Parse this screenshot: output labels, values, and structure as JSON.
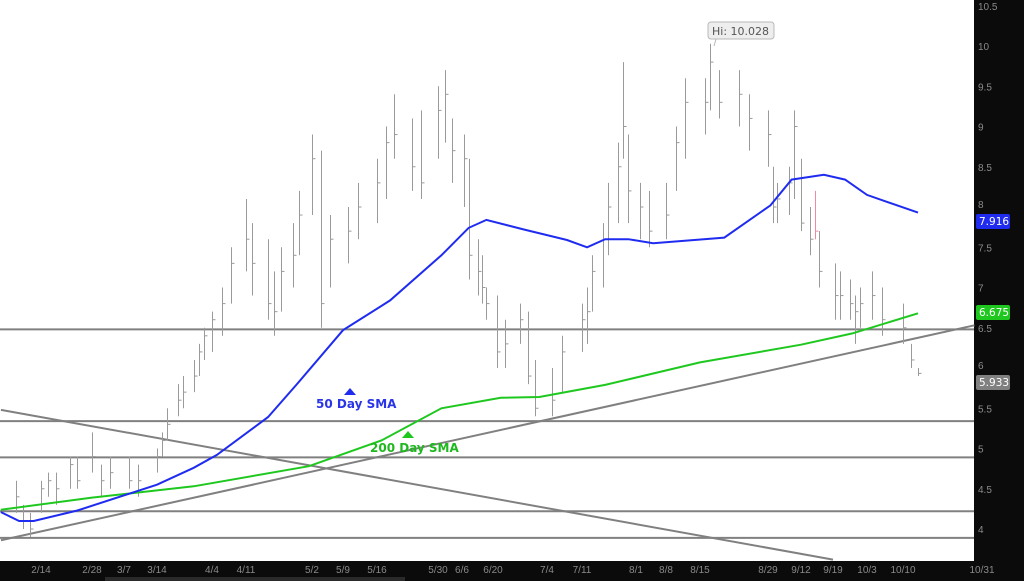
{
  "chart_data": {
    "type": "ohlc",
    "title": "",
    "xlabel": "",
    "ylabel": "",
    "ylim": [
      3.75,
      10.55
    ],
    "grid": false,
    "legend": "none",
    "y_ticks": [
      "10.5",
      "10",
      "9.5",
      "9",
      "8.5",
      "8",
      "7.5",
      "7",
      "6.5",
      "6",
      "5.5",
      "5",
      "4.5",
      "4"
    ],
    "x_ticks": [
      "2/14",
      "2/28",
      "3/7",
      "3/14",
      "4/4",
      "4/11",
      "5/2",
      "5/9",
      "5/16",
      "5/30",
      "6/6",
      "6/20",
      "7/4",
      "7/11",
      "8/1",
      "8/8",
      "8/15",
      "8/29",
      "9/12",
      "9/19",
      "10/3",
      "10/10",
      "10/31"
    ],
    "bars_fields": [
      "date",
      "high",
      "low",
      "close"
    ],
    "bars": [
      [
        "2/7",
        4.6,
        4.2,
        4.4
      ],
      [
        "2/9",
        4.3,
        4.0,
        4.1
      ],
      [
        "2/11",
        4.2,
        3.9,
        4.0
      ],
      [
        "2/14",
        4.6,
        4.2,
        4.5
      ],
      [
        "2/16",
        4.7,
        4.4,
        4.6
      ],
      [
        "2/18",
        4.7,
        4.3,
        4.5
      ],
      [
        "2/22",
        4.9,
        4.5,
        4.8
      ],
      [
        "2/24",
        4.9,
        4.5,
        4.6
      ],
      [
        "2/28",
        5.2,
        4.7,
        4.9
      ],
      [
        "3/2",
        4.8,
        4.4,
        4.6
      ],
      [
        "3/4",
        4.9,
        4.5,
        4.7
      ],
      [
        "3/8",
        4.9,
        4.5,
        4.6
      ],
      [
        "3/10",
        4.8,
        4.4,
        4.6
      ],
      [
        "3/14",
        5.0,
        4.7,
        4.9
      ],
      [
        "3/16",
        5.2,
        4.9,
        5.1
      ],
      [
        "3/18",
        5.5,
        5.1,
        5.3
      ],
      [
        "3/22",
        5.8,
        5.4,
        5.6
      ],
      [
        "3/24",
        5.9,
        5.5,
        5.7
      ],
      [
        "3/28",
        6.1,
        5.7,
        5.9
      ],
      [
        "3/30",
        6.3,
        5.9,
        6.2
      ],
      [
        "4/1",
        6.5,
        6.1,
        6.4
      ],
      [
        "4/4",
        6.7,
        6.2,
        6.6
      ],
      [
        "4/6",
        7.0,
        6.4,
        6.8
      ],
      [
        "4/8",
        7.5,
        6.8,
        7.3
      ],
      [
        "4/11",
        8.1,
        7.2,
        7.6
      ],
      [
        "4/13",
        7.8,
        6.9,
        7.3
      ],
      [
        "4/18",
        7.6,
        6.6,
        6.8
      ],
      [
        "4/20",
        7.2,
        6.4,
        6.7
      ],
      [
        "4/22",
        7.5,
        6.7,
        7.2
      ],
      [
        "4/26",
        7.8,
        7.0,
        7.4
      ],
      [
        "4/28",
        8.2,
        7.4,
        7.9
      ],
      [
        "5/2",
        8.9,
        7.9,
        8.6
      ],
      [
        "5/4",
        8.7,
        6.5,
        6.8
      ],
      [
        "5/6",
        7.9,
        7.0,
        7.6
      ],
      [
        "5/10",
        8.0,
        7.3,
        7.7
      ],
      [
        "5/12",
        8.3,
        7.6,
        8.0
      ],
      [
        "5/16",
        8.6,
        7.8,
        8.3
      ],
      [
        "5/18",
        9.0,
        8.1,
        8.8
      ],
      [
        "5/20",
        9.4,
        8.6,
        8.9
      ],
      [
        "5/24",
        9.1,
        8.2,
        8.5
      ],
      [
        "5/26",
        9.2,
        8.1,
        8.3
      ],
      [
        "5/30",
        9.5,
        8.6,
        9.2
      ],
      [
        "6/1",
        9.7,
        8.8,
        9.4
      ],
      [
        "6/3",
        9.1,
        8.3,
        8.7
      ],
      [
        "6/7",
        8.9,
        8.0,
        8.6
      ],
      [
        "6/9",
        8.6,
        7.1,
        7.4
      ],
      [
        "6/13",
        7.6,
        6.9,
        7.2
      ],
      [
        "6/15",
        7.4,
        6.8,
        7.0
      ],
      [
        "6/17",
        7.0,
        6.6,
        6.8
      ],
      [
        "6/21",
        6.9,
        6.0,
        6.2
      ],
      [
        "6/23",
        6.6,
        6.0,
        6.3
      ],
      [
        "6/27",
        6.8,
        6.3,
        6.6
      ],
      [
        "6/29",
        6.7,
        5.8,
        5.9
      ],
      [
        "7/1",
        6.1,
        5.4,
        5.5
      ],
      [
        "7/5",
        6.0,
        5.4,
        5.6
      ],
      [
        "7/7",
        6.4,
        5.7,
        6.2
      ],
      [
        "7/11",
        6.8,
        6.2,
        6.6
      ],
      [
        "7/13",
        7.0,
        6.3,
        6.7
      ],
      [
        "7/15",
        7.4,
        6.7,
        7.2
      ],
      [
        "7/19",
        7.8,
        7.0,
        7.6
      ],
      [
        "7/21",
        8.3,
        7.4,
        8.0
      ],
      [
        "7/25",
        8.8,
        7.8,
        8.5
      ],
      [
        "7/27",
        9.8,
        8.6,
        9.0
      ],
      [
        "7/29",
        8.9,
        7.8,
        8.2
      ],
      [
        "8/2",
        8.3,
        7.6,
        8.0
      ],
      [
        "8/4",
        8.2,
        7.5,
        7.7
      ],
      [
        "8/8",
        8.3,
        7.6,
        7.9
      ],
      [
        "8/10",
        9.0,
        8.2,
        8.8
      ],
      [
        "8/12",
        9.6,
        8.6,
        9.3
      ],
      [
        "8/16",
        9.6,
        8.9,
        9.3
      ],
      [
        "8/17",
        10.028,
        9.2,
        9.8
      ],
      [
        "8/19",
        9.7,
        9.1,
        9.3
      ],
      [
        "8/23",
        9.7,
        9.0,
        9.4
      ],
      [
        "8/25",
        9.4,
        8.7,
        9.1
      ],
      [
        "8/29",
        9.2,
        8.5,
        8.9
      ],
      [
        "8/31",
        8.5,
        7.8,
        8.0
      ],
      [
        "9/2",
        8.3,
        7.8,
        8.1
      ],
      [
        "9/7",
        8.5,
        7.9,
        8.3
      ],
      [
        "9/9",
        9.2,
        8.1,
        9.0
      ],
      [
        "9/12",
        8.6,
        7.7,
        7.8
      ],
      [
        "9/14",
        8.0,
        7.4,
        7.6
      ],
      [
        "9/15",
        8.2,
        7.6,
        7.7
      ],
      [
        "9/16",
        7.7,
        7.0,
        7.2
      ],
      [
        "9/20",
        7.3,
        6.6,
        6.9
      ],
      [
        "9/22",
        7.2,
        6.6,
        6.9
      ],
      [
        "9/26",
        7.1,
        6.6,
        6.8
      ],
      [
        "9/28",
        6.9,
        6.3,
        6.7
      ],
      [
        "9/30",
        7.0,
        6.5,
        6.8
      ],
      [
        "10/4",
        7.2,
        6.6,
        6.9
      ],
      [
        "10/6",
        7.0,
        6.4,
        6.6
      ],
      [
        "10/10",
        6.8,
        6.3,
        6.5
      ],
      [
        "10/12",
        6.3,
        6.0,
        6.1
      ],
      [
        "10/14",
        6.0,
        5.9,
        5.933
      ]
    ],
    "highlight_bar_date": "9/15",
    "colors": {
      "bars": "#9a9a9a",
      "highlight_bar": "#f08aa0",
      "sma50": "#1f2cf0",
      "sma200": "#1ec81e",
      "levels": "#808080",
      "last_price": "#808080"
    },
    "series": [
      {
        "name": "50 Day SMA",
        "points": [
          [
            "2/3",
            4.21
          ],
          [
            "2/8",
            4.1
          ],
          [
            "2/12",
            4.1
          ],
          [
            "2/24",
            4.23
          ],
          [
            "3/14",
            4.55
          ],
          [
            "3/28",
            4.76
          ],
          [
            "4/5",
            4.92
          ],
          [
            "4/18",
            5.39
          ],
          [
            "4/27",
            5.79
          ],
          [
            "5/9",
            6.47
          ],
          [
            "5/19",
            6.84
          ],
          [
            "5/31",
            7.4
          ],
          [
            "6/9",
            7.74
          ],
          [
            "6/17",
            7.84
          ],
          [
            "6/28",
            7.72
          ],
          [
            "7/8",
            7.59
          ],
          [
            "7/13",
            7.5
          ],
          [
            "7/20",
            7.6
          ],
          [
            "7/29",
            7.6
          ],
          [
            "8/5",
            7.55
          ],
          [
            "8/20",
            7.62
          ],
          [
            "8/30",
            8.02
          ],
          [
            "9/8",
            8.34
          ],
          [
            "9/17",
            8.4
          ],
          [
            "9/24",
            8.34
          ],
          [
            "10/3",
            8.15
          ],
          [
            "10/14",
            7.93
          ]
        ]
      },
      {
        "name": "200 Day SMA",
        "points": [
          [
            "2/3",
            4.24
          ],
          [
            "2/28",
            4.39
          ],
          [
            "3/28",
            4.53
          ],
          [
            "5/1",
            4.78
          ],
          [
            "5/17",
            5.1
          ],
          [
            "5/31",
            5.5
          ],
          [
            "6/22",
            5.63
          ],
          [
            "7/2",
            5.64
          ],
          [
            "7/20",
            5.79
          ],
          [
            "8/15",
            6.07
          ],
          [
            "9/12",
            6.29
          ],
          [
            "9/27",
            6.43
          ],
          [
            "10/14",
            6.68
          ]
        ]
      }
    ],
    "horizontal_levels": [
      6.48,
      5.34,
      4.89,
      4.22,
      3.89
    ],
    "trendlines": [
      {
        "from": [
          "2/3",
          5.48
        ],
        "to": [
          "9/19",
          3.62
        ]
      },
      {
        "from": [
          "2/3",
          3.86
        ],
        "to": [
          "10/29",
          6.53
        ]
      }
    ],
    "annotations": {
      "high_label": "Hi: 10.028",
      "sma50_label": "50 Day SMA",
      "sma200_label": "200 Day SMA",
      "sma50_value": "7.916",
      "sma200_value": "6.675",
      "last_price": "5.933"
    }
  }
}
